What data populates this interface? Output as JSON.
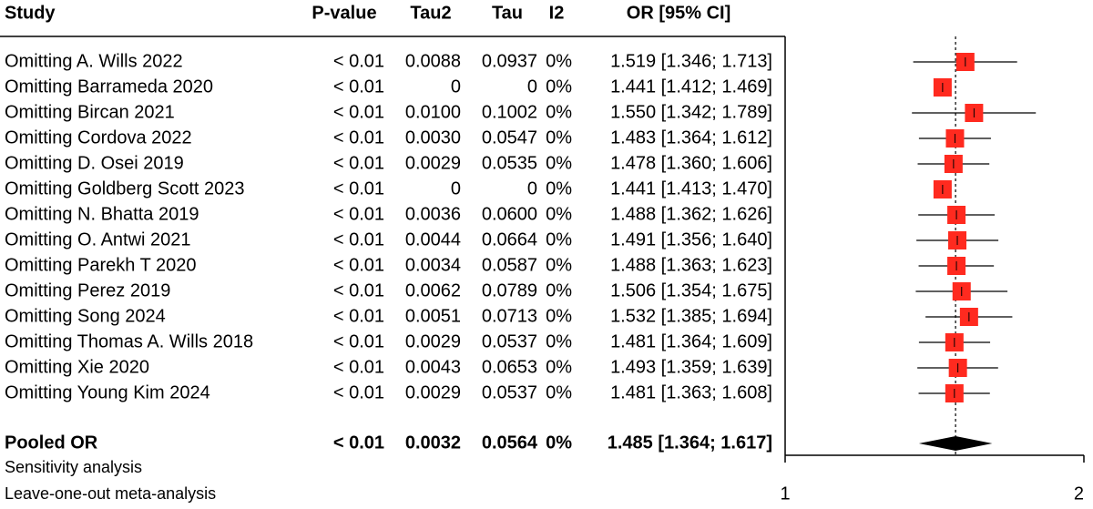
{
  "chart_data": {
    "type": "forest",
    "columns": {
      "study": "Study",
      "p_value": "P-value",
      "tau2": "Tau2",
      "tau": "Tau",
      "i2": "I2",
      "ci_label": "OR [95% CI]"
    },
    "rows": [
      {
        "study": "Omitting A. Wills 2022",
        "p_value": "< 0.01",
        "tau2": "0.0088",
        "tau": "0.0937",
        "i2": "0%",
        "ci_label": "1.519 [1.346; 1.713]",
        "or": 1.519,
        "lower": 1.346,
        "upper": 1.713
      },
      {
        "study": "Omitting Barrameda 2020",
        "p_value": "< 0.01",
        "tau2": "0",
        "tau": "0",
        "i2": "0%",
        "ci_label": "1.441 [1.412; 1.469]",
        "or": 1.441,
        "lower": 1.412,
        "upper": 1.469
      },
      {
        "study": "Omitting Bircan 2021",
        "p_value": "< 0.01",
        "tau2": "0.0100",
        "tau": "0.1002",
        "i2": "0%",
        "ci_label": "1.550 [1.342; 1.789]",
        "or": 1.55,
        "lower": 1.342,
        "upper": 1.789
      },
      {
        "study": "Omitting Cordova 2022",
        "p_value": "< 0.01",
        "tau2": "0.0030",
        "tau": "0.0547",
        "i2": "0%",
        "ci_label": "1.483 [1.364; 1.612]",
        "or": 1.483,
        "lower": 1.364,
        "upper": 1.612
      },
      {
        "study": "Omitting D. Osei 2019",
        "p_value": "< 0.01",
        "tau2": "0.0029",
        "tau": "0.0535",
        "i2": "0%",
        "ci_label": "1.478 [1.360; 1.606]",
        "or": 1.478,
        "lower": 1.36,
        "upper": 1.606
      },
      {
        "study": "Omitting Goldberg Scott 2023",
        "p_value": "< 0.01",
        "tau2": "0",
        "tau": "0",
        "i2": "0%",
        "ci_label": "1.441 [1.413; 1.470]",
        "or": 1.441,
        "lower": 1.413,
        "upper": 1.47
      },
      {
        "study": "Omitting N. Bhatta 2019",
        "p_value": "< 0.01",
        "tau2": "0.0036",
        "tau": "0.0600",
        "i2": "0%",
        "ci_label": "1.488 [1.362; 1.626]",
        "or": 1.488,
        "lower": 1.362,
        "upper": 1.626
      },
      {
        "study": "Omitting O. Antwi 2021",
        "p_value": "< 0.01",
        "tau2": "0.0044",
        "tau": "0.0664",
        "i2": "0%",
        "ci_label": "1.491 [1.356; 1.640]",
        "or": 1.491,
        "lower": 1.356,
        "upper": 1.64
      },
      {
        "study": "Omitting Parekh T 2020",
        "p_value": "< 0.01",
        "tau2": "0.0034",
        "tau": "0.0587",
        "i2": "0%",
        "ci_label": "1.488 [1.363; 1.623]",
        "or": 1.488,
        "lower": 1.363,
        "upper": 1.623
      },
      {
        "study": "Omitting Perez 2019",
        "p_value": "< 0.01",
        "tau2": "0.0062",
        "tau": "0.0789",
        "i2": "0%",
        "ci_label": "1.506 [1.354; 1.675]",
        "or": 1.506,
        "lower": 1.354,
        "upper": 1.675
      },
      {
        "study": "Omitting Song 2024",
        "p_value": "< 0.01",
        "tau2": "0.0051",
        "tau": "0.0713",
        "i2": "0%",
        "ci_label": "1.532 [1.385; 1.694]",
        "or": 1.532,
        "lower": 1.385,
        "upper": 1.694
      },
      {
        "study": "Omitting Thomas A. Wills 2018",
        "p_value": "< 0.01",
        "tau2": "0.0029",
        "tau": "0.0537",
        "i2": "0%",
        "ci_label": "1.481 [1.364; 1.609]",
        "or": 1.481,
        "lower": 1.364,
        "upper": 1.609
      },
      {
        "study": "Omitting Xie 2020",
        "p_value": "< 0.01",
        "tau2": "0.0043",
        "tau": "0.0653",
        "i2": "0%",
        "ci_label": "1.493 [1.359; 1.639]",
        "or": 1.493,
        "lower": 1.359,
        "upper": 1.639
      },
      {
        "study": "Omitting Young Kim 2024",
        "p_value": "< 0.01",
        "tau2": "0.0029",
        "tau": "0.0537",
        "i2": "0%",
        "ci_label": "1.481 [1.363; 1.608]",
        "or": 1.481,
        "lower": 1.363,
        "upper": 1.608
      }
    ],
    "pooled": {
      "study": "Pooled OR",
      "p_value": "< 0.01",
      "tau2": "0.0032",
      "tau": "0.0564",
      "i2": "0%",
      "ci_label": "1.485 [1.364; 1.617]",
      "or": 1.485,
      "lower": 1.364,
      "upper": 1.617
    },
    "notes": [
      "Sensitivity analysis",
      "Leave-one-out meta-analysis"
    ],
    "xlim": [
      1,
      2
    ],
    "xticks": [
      1,
      2
    ],
    "log_x": true,
    "marker_color": "#ff2a1f",
    "line_color": "#000000"
  }
}
